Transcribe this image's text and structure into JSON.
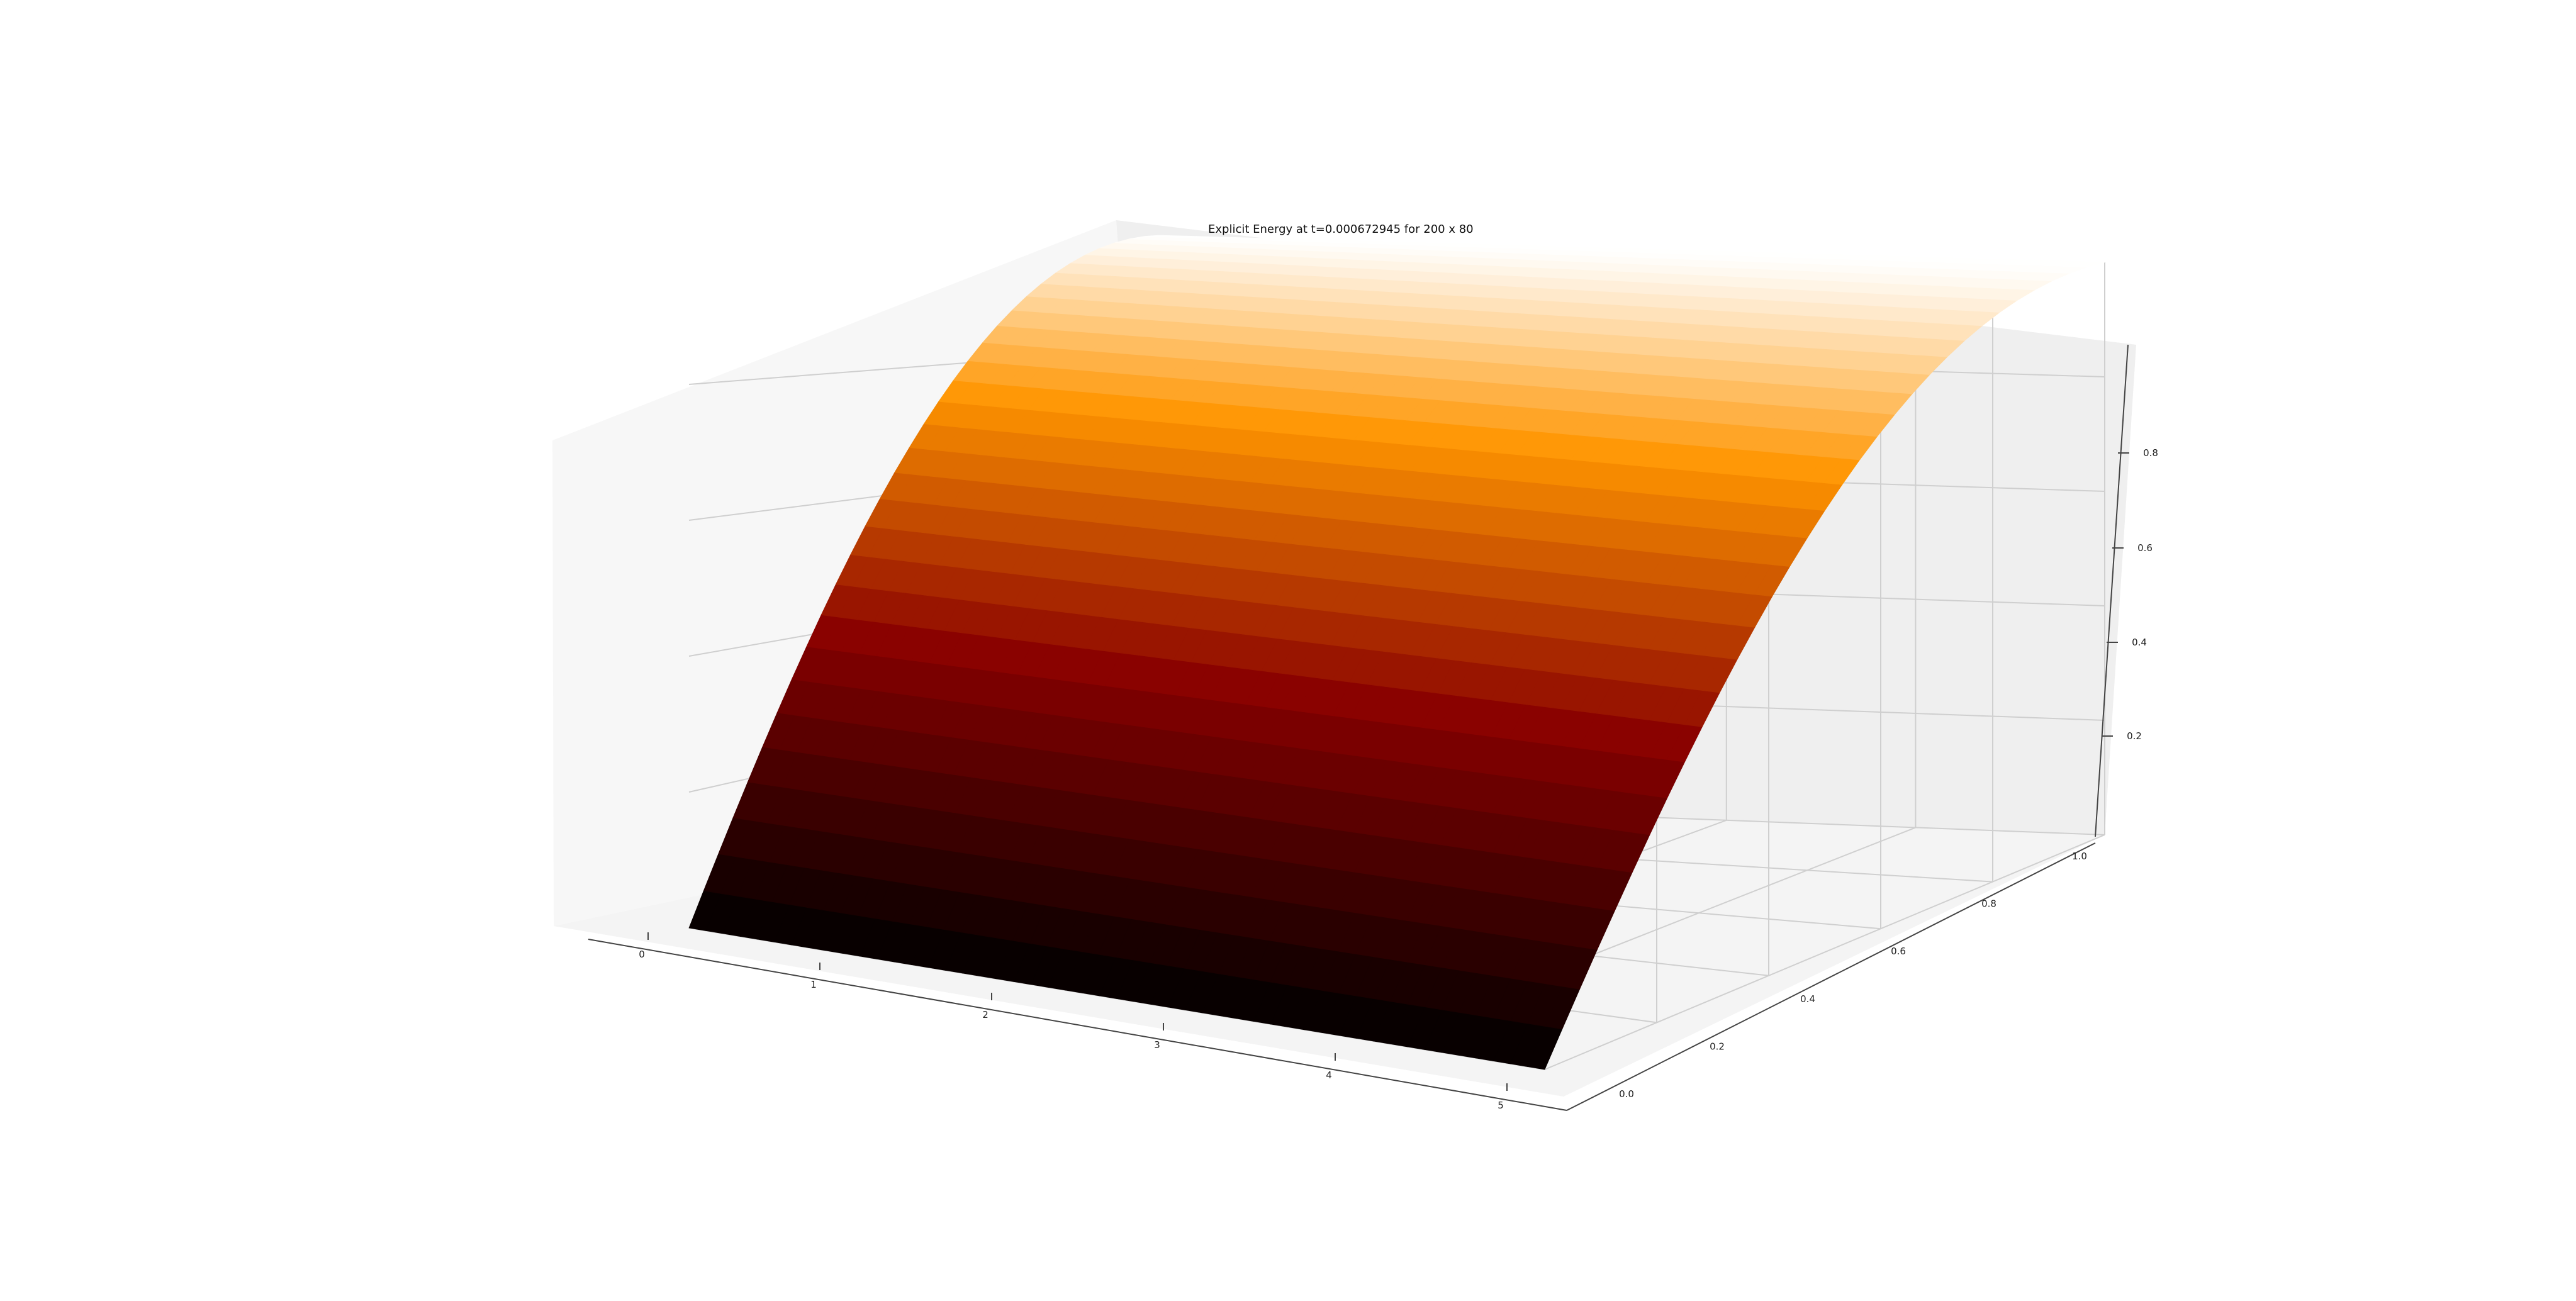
{
  "chart_data": {
    "type": "surface3d",
    "title": "Explicit Energy at t=0.000672945 for 200 x 80",
    "xlabel": "",
    "ylabel": "",
    "zlabel": "",
    "xlim": [
      0,
      5
    ],
    "ylim": [
      0,
      1
    ],
    "zlim": [
      0,
      1
    ],
    "x_ticks": [
      "0",
      "1",
      "2",
      "3",
      "4",
      "5"
    ],
    "y_ticks": [
      "0.0",
      "0.2",
      "0.4",
      "0.6",
      "0.8",
      "1.0"
    ],
    "z_ticks": [
      "0.2",
      "0.4",
      "0.6",
      "0.8"
    ],
    "surface": {
      "function": "sin(pi*y/2)",
      "x_range": [
        0,
        5
      ],
      "y_range": [
        0,
        1
      ],
      "z_range": [
        0,
        1
      ],
      "colormap": "gist_heat"
    },
    "grid": true
  }
}
